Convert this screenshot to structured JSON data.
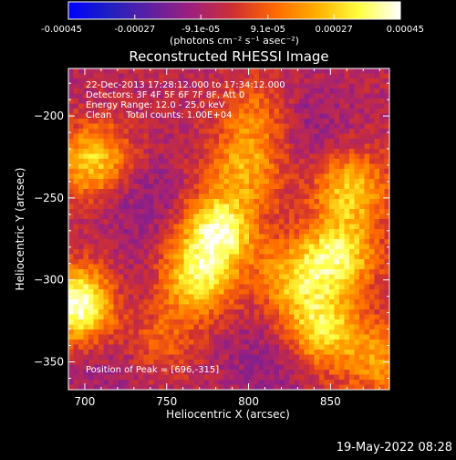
{
  "colorbar": {
    "tick_labels": [
      "-0.00045",
      "-0.00027",
      "-9.1e-05",
      "9.1e-05",
      "0.00027",
      "0.00045"
    ],
    "tick_values": [
      -0.00045,
      -0.00027,
      -9.1e-05,
      9.1e-05,
      0.00027,
      0.00045
    ],
    "range": [
      -0.00045,
      0.00045
    ],
    "unit_label": "(photons cm⁻² s⁻¹ asec⁻²)",
    "colormap": [
      "#0000ff",
      "#2020c0",
      "#6020a0",
      "#a0207a",
      "#d03030",
      "#ff6a00",
      "#ffb000",
      "#ffff40",
      "#ffffff"
    ]
  },
  "info_lines": [
    "22-Dec-2013 17:28:12.000 to 17:34:12.000",
    "Detectors: 3F 4F 5F 6F 7F 8F, Att 0",
    "Energy Range: 12.0 - 25.0 keV",
    "Clean     Total counts: 1.00E+04"
  ],
  "peak_label": "Position of Peak = [696,-315]",
  "footer_date": "19-May-2022 08:28",
  "chart_data": {
    "type": "heatmap",
    "title": "Reconstructed RHESSI Image",
    "xlabel": "Heliocentric X (arcsec)",
    "ylabel": "Heliocentric Y (arcsec)",
    "xlim": [
      690,
      886
    ],
    "ylim": [
      -367,
      -171
    ],
    "x_ticks": [
      700,
      750,
      800,
      850
    ],
    "x_tick_labels": [
      "700",
      "750",
      "800",
      "850"
    ],
    "y_ticks": [
      -200,
      -250,
      -300,
      -350
    ],
    "y_tick_labels": [
      "−200",
      "−250",
      "−300",
      "−350"
    ],
    "value_range": [
      -0.00045,
      0.00045
    ],
    "peak_position": [
      696,
      -315
    ],
    "sources": [
      {
        "x": 782,
        "y": -270,
        "amplitude": 1.0
      },
      {
        "x": 768,
        "y": -300,
        "amplitude": 0.8
      },
      {
        "x": 798,
        "y": -232,
        "amplitude": 0.55
      },
      {
        "x": 805,
        "y": -200,
        "amplitude": 0.4
      },
      {
        "x": 706,
        "y": -228,
        "amplitude": 0.75
      },
      {
        "x": 696,
        "y": -315,
        "amplitude": 1.15
      },
      {
        "x": 855,
        "y": -285,
        "amplitude": 0.85
      },
      {
        "x": 845,
        "y": -330,
        "amplitude": 0.8
      },
      {
        "x": 862,
        "y": -245,
        "amplitude": 0.7
      },
      {
        "x": 828,
        "y": -300,
        "amplitude": 0.6
      },
      {
        "x": 745,
        "y": -335,
        "amplitude": 0.35
      },
      {
        "x": 880,
        "y": -350,
        "amplitude": 0.5
      }
    ],
    "negative_regions": [
      {
        "x": 735,
        "y": -250,
        "amplitude": 0.7
      },
      {
        "x": 730,
        "y": -310,
        "amplitude": 0.5
      },
      {
        "x": 835,
        "y": -205,
        "amplitude": 0.55
      },
      {
        "x": 810,
        "y": -350,
        "amplitude": 0.6
      },
      {
        "x": 715,
        "y": -355,
        "amplitude": 0.4
      }
    ]
  }
}
